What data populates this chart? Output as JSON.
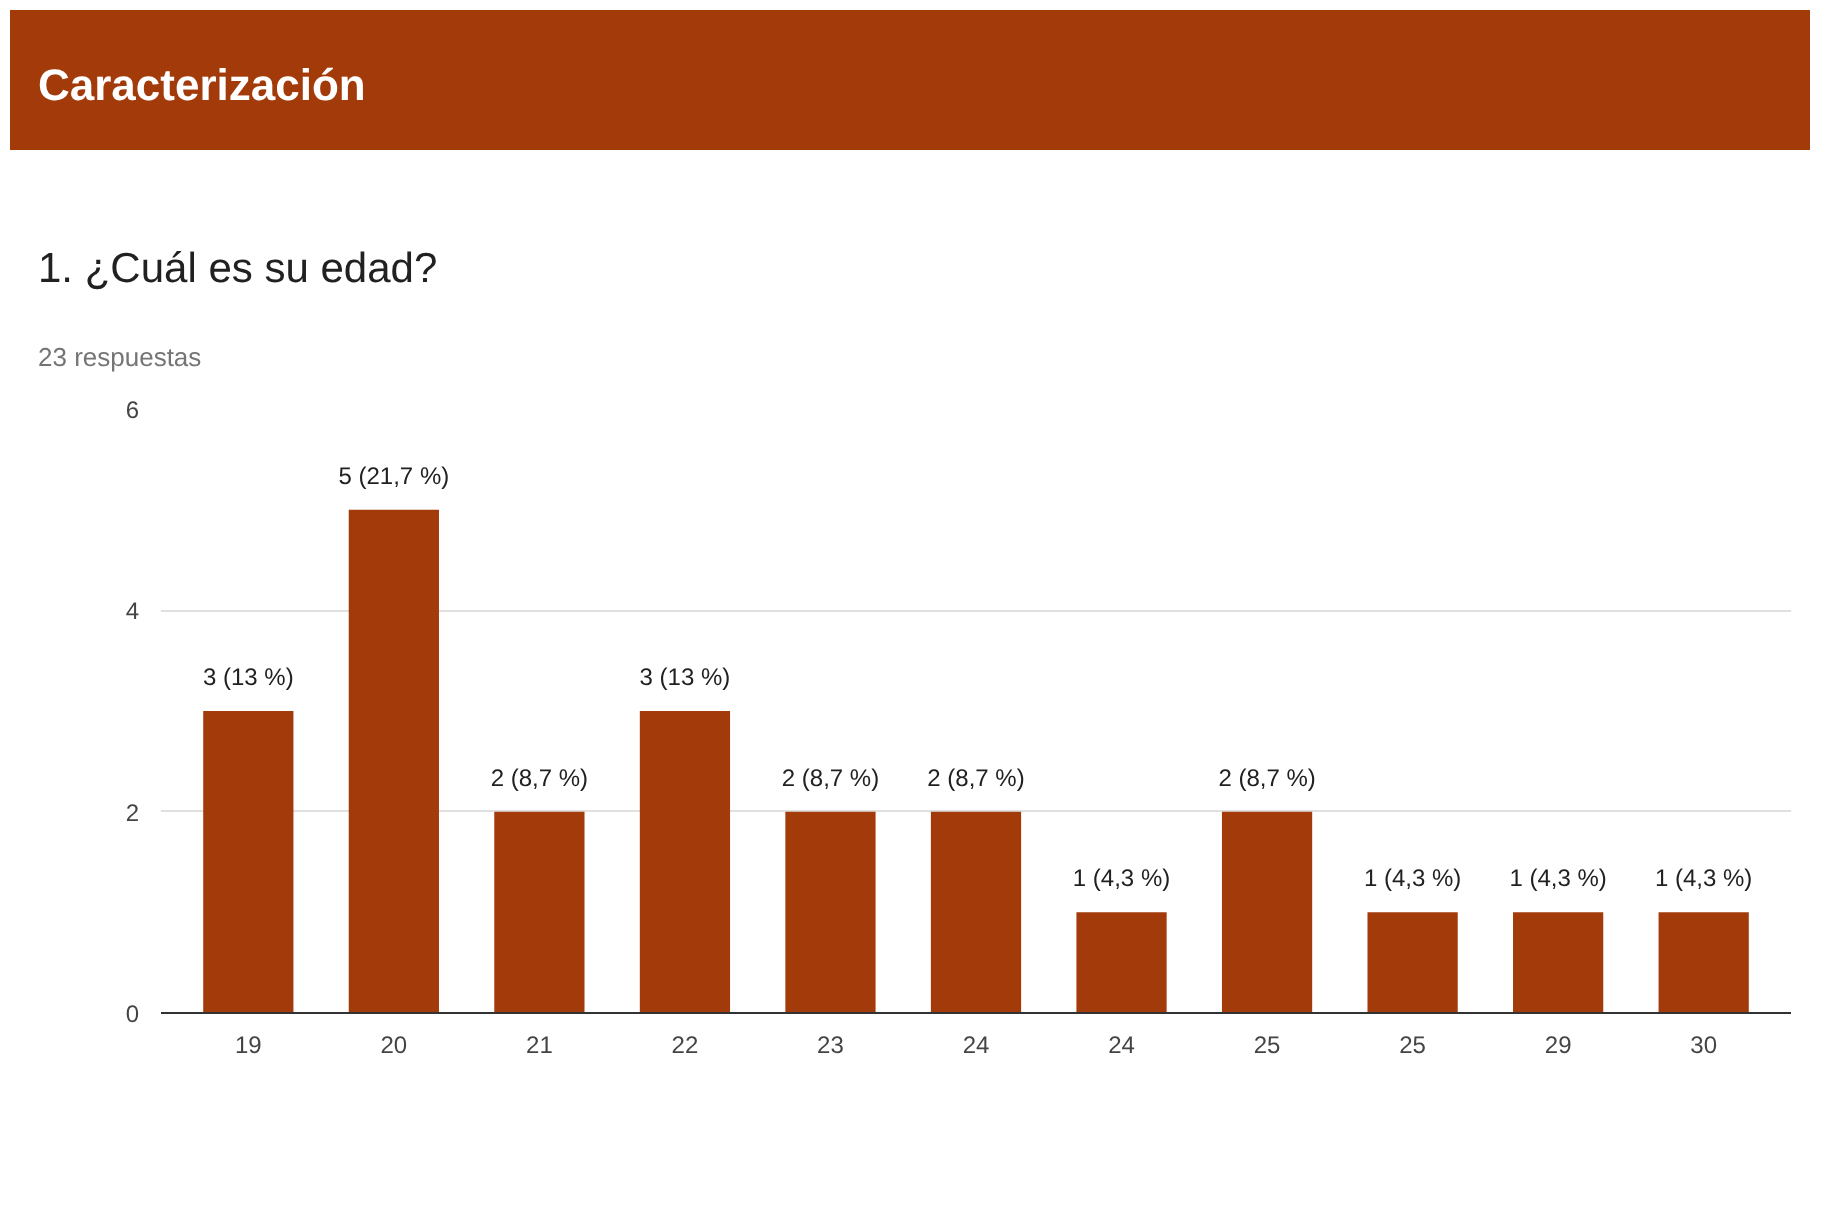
{
  "chart_data": {
    "type": "bar",
    "title": "1. ¿Cuál es su edad?",
    "subtitle": "23 respuestas",
    "annotations": [
      "Caracterización"
    ],
    "categories": [
      "19",
      "20",
      "21",
      "22",
      "23",
      "24",
      "24",
      "25",
      "25",
      "29",
      "30"
    ],
    "values": [
      3,
      5,
      2,
      3,
      2,
      2,
      1,
      2,
      1,
      1,
      1
    ],
    "value_labels": [
      "3 (13 %)",
      "5 (21,7 %)",
      "2 (8,7 %)",
      "3 (13 %)",
      "2 (8,7 %)",
      "2 (8,7 %)",
      "1 (4,3 %)",
      "2 (8,7 %)",
      "1 (4,3 %)",
      "1 (4,3 %)",
      "1 (4,3 %)"
    ],
    "color": "#a33a0a",
    "ylim": [
      0,
      6
    ],
    "yticks": [
      0,
      2,
      4,
      6
    ],
    "grid": "y"
  }
}
